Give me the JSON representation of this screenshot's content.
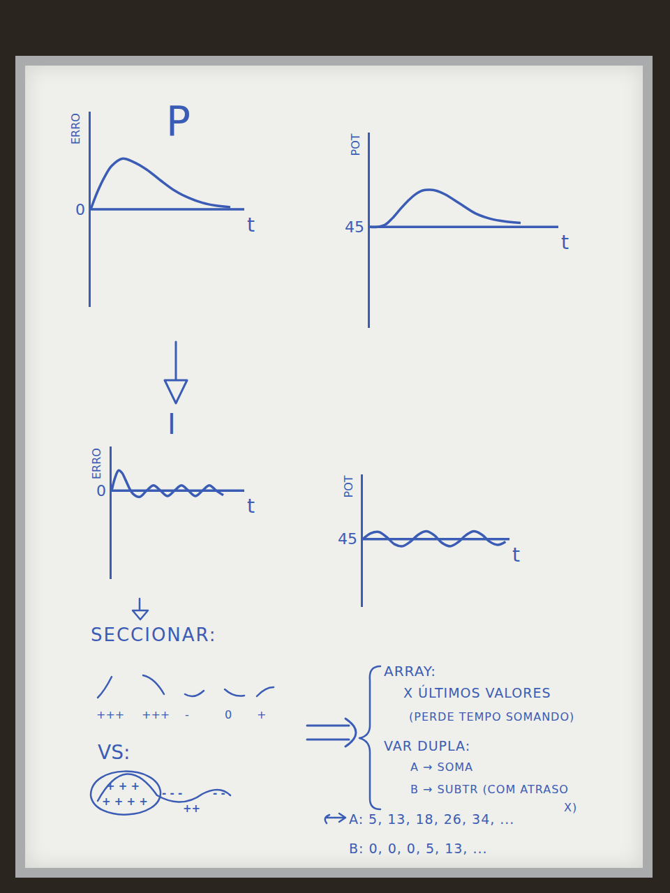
{
  "title": "P",
  "arrow_label": "I",
  "chart_data": [
    {
      "type": "line",
      "ylabel": "ERRO",
      "xlabel": "t",
      "color": "#3b5cb5",
      "grid": false,
      "tick_labels": "y",
      "x": [
        0,
        1,
        2,
        3,
        4.5,
        6,
        8,
        10,
        12,
        14,
        16,
        18,
        20
      ],
      "values": [
        0,
        2.5,
        4.5,
        6,
        7,
        6.6,
        5.5,
        4,
        2.6,
        1.6,
        0.9,
        0.5,
        0.3
      ],
      "xlim": [
        0,
        22
      ],
      "ylim": [
        -13.5,
        13.5
      ],
      "yticks": [
        0
      ]
    },
    {
      "type": "line",
      "ylabel": "POT",
      "xlabel": "t",
      "color": "#3b5cb5",
      "grid": false,
      "tick_labels": "y",
      "x": [
        0,
        1,
        2,
        3,
        4,
        5,
        6,
        7,
        8,
        9,
        10,
        12,
        14,
        16,
        18,
        20
      ],
      "values": [
        45,
        45,
        45.3,
        46.3,
        47.6,
        48.8,
        49.8,
        50.4,
        50.5,
        50.3,
        49.8,
        48.4,
        47,
        46.2,
        45.8,
        45.6
      ],
      "xlim": [
        0,
        25
      ],
      "ylim": [
        30,
        59
      ],
      "yticks": [
        45
      ]
    },
    {
      "type": "line",
      "ylabel": "ERRO",
      "xlabel": "t",
      "color": "#3b5cb5",
      "grid": false,
      "tick_labels": "y",
      "x": [
        0,
        0.5,
        1,
        1.5,
        2,
        3,
        4,
        5,
        6,
        7,
        8,
        9,
        10,
        11,
        12,
        13,
        14,
        15,
        16
      ],
      "values": [
        0,
        1.5,
        2.3,
        2,
        1.2,
        -0.3,
        -0.7,
        0,
        0.6,
        0,
        -0.6,
        0,
        0.6,
        0,
        -0.6,
        0,
        0.6,
        0,
        -0.5
      ],
      "xlim": [
        0,
        19
      ],
      "ylim": [
        -10,
        5
      ],
      "yticks": [
        0
      ]
    },
    {
      "type": "line",
      "ylabel": "POT",
      "xlabel": "t",
      "color": "#3b5cb5",
      "grid": false,
      "tick_labels": "y",
      "x": [
        0,
        1,
        2,
        3,
        4,
        5,
        6,
        7,
        8,
        9,
        10,
        11,
        12,
        13,
        14,
        15,
        16,
        17,
        18
      ],
      "values": [
        45,
        45.9,
        46.1,
        45.3,
        44.2,
        43.9,
        44.6,
        45.7,
        46.2,
        45.6,
        44.4,
        43.9,
        44.5,
        45.6,
        46.2,
        45.7,
        44.6,
        44.1,
        44.6
      ],
      "xlim": [
        0,
        18.5
      ],
      "ylim": [
        34.5,
        55
      ],
      "yticks": [
        45
      ]
    }
  ],
  "section_heading": "SECCIONAR:",
  "segments": [
    "+++",
    "+++",
    "-",
    "0",
    "+"
  ],
  "vs": {
    "label": "VS:",
    "inside": [
      "+ + +",
      "+ + + +"
    ],
    "outside": [
      "- - -",
      "++",
      "- -"
    ]
  },
  "notes": {
    "lines": [
      "ARRAY:",
      "X ÚLTIMOS VALORES",
      "(PERDE TEMPO SOMANDO)",
      "VAR DUPLA:",
      "A → SOMA",
      "B → SUBTR (COM ATRASO",
      "X)"
    ],
    "sequences": [
      "A: 5, 13, 18, 26, 34, ...",
      "B: 0, 0, 0, 5, 13, ..."
    ]
  }
}
